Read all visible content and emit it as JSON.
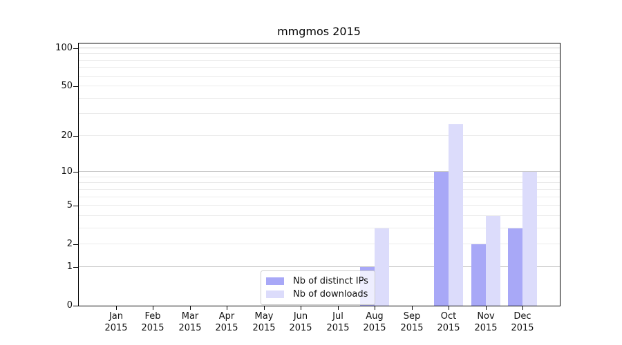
{
  "chart_data": {
    "type": "bar",
    "title": "mmgmos 2015",
    "categories": [
      "Jan 2015",
      "Feb 2015",
      "Mar 2015",
      "Apr 2015",
      "May 2015",
      "Jun 2015",
      "Jul 2015",
      "Aug 2015",
      "Sep 2015",
      "Oct 2015",
      "Nov 2015",
      "Dec 2015"
    ],
    "series": [
      {
        "name": "Nb of distinct IPs",
        "color": "#a8a8f7",
        "values": [
          0,
          0,
          0,
          0,
          0,
          0,
          0,
          1,
          0,
          10,
          2,
          3
        ]
      },
      {
        "name": "Nb of downloads",
        "color": "#dcdcfb",
        "values": [
          0,
          0,
          0,
          0,
          0,
          0,
          0,
          3,
          0,
          25,
          4,
          10
        ]
      }
    ],
    "xlabel": "",
    "ylabel": "",
    "y_axis": {
      "scale": "log1p",
      "ticks": [
        0,
        1,
        2,
        5,
        10,
        20,
        50,
        100
      ],
      "range": [
        0,
        111
      ]
    },
    "gridlines": {
      "major": [
        1,
        10,
        100
      ],
      "minor": [
        2,
        3,
        4,
        5,
        6,
        7,
        8,
        9,
        20,
        30,
        40,
        50,
        60,
        70,
        80,
        90
      ]
    },
    "legend_position": "inside-bottom-center"
  },
  "colors": {
    "axis": "#000000",
    "grid_minor": "#ebebeb",
    "grid_major": "#c9c9c9",
    "text": "#111111",
    "legend_border": "#cccccc"
  }
}
